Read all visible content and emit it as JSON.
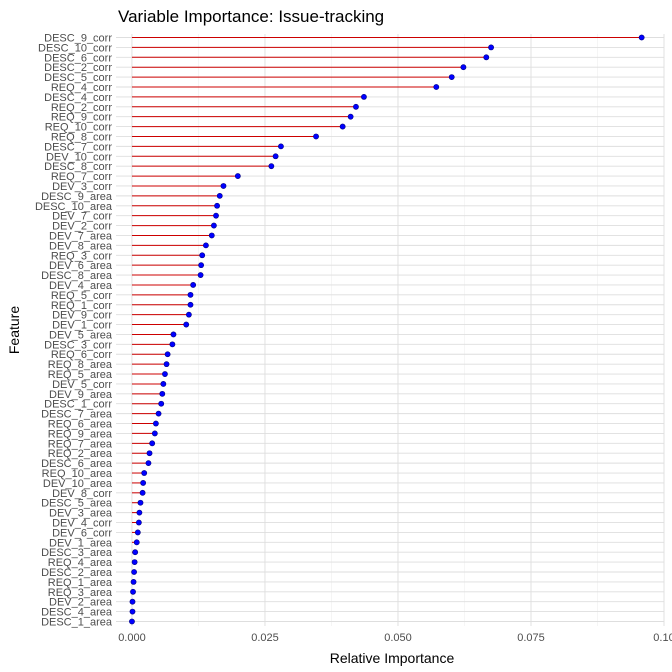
{
  "chart_data": {
    "type": "lollipop",
    "title": "Variable Importance: Issue-tracking",
    "xlabel": "Relative Importance",
    "ylabel": "Feature",
    "xlim": [
      -0.003,
      0.1
    ],
    "x_ticks": [
      0.0,
      0.025,
      0.05,
      0.075,
      0.1
    ],
    "x_tick_labels": [
      "0.000",
      "0.025",
      "0.050",
      "0.075",
      "0.10"
    ],
    "grid": true,
    "colors": {
      "segment": "#cc0000",
      "point": "#0000ff",
      "point_outline": "#000080"
    },
    "features": [
      "DESC_9_corr",
      "DESC_10_corr",
      "DESC_6_corr",
      "DESC_2_corr",
      "DESC_5_corr",
      "REQ_4_corr",
      "DESC_4_corr",
      "REQ_2_corr",
      "REQ_9_corr",
      "REQ_10_corr",
      "REQ_8_corr",
      "DESC_7_corr",
      "DEV_10_corr",
      "DESC_8_corr",
      "REQ_7_corr",
      "DEV_3_corr",
      "DESC_9_area",
      "DESC_10_area",
      "DEV_7_corr",
      "DEV_2_corr",
      "DEV_7_area",
      "DEV_8_area",
      "REQ_3_corr",
      "DEV_6_area",
      "DESC_8_area",
      "DEV_4_area",
      "REQ_5_corr",
      "REQ_1_corr",
      "DEV_9_corr",
      "DEV_1_corr",
      "DEV_5_area",
      "DESC_3_corr",
      "REQ_6_corr",
      "REQ_8_area",
      "REQ_5_area",
      "DEV_5_corr",
      "DEV_9_area",
      "DESC_1_corr",
      "DESC_7_area",
      "REQ_6_area",
      "REQ_9_area",
      "REQ_7_area",
      "REQ_2_area",
      "DESC_6_area",
      "REQ_10_area",
      "DEV_10_area",
      "DEV_8_corr",
      "DESC_5_area",
      "DEV_3_area",
      "DEV_4_corr",
      "DEV_6_corr",
      "DEV_1_area",
      "DESC_3_area",
      "REQ_4_area",
      "DESC_2_area",
      "REQ_1_area",
      "REQ_3_area",
      "DEV_2_area",
      "DESC_4_area",
      "DESC_1_area"
    ],
    "values": [
      0.0958,
      0.0675,
      0.0666,
      0.0623,
      0.0601,
      0.0572,
      0.0436,
      0.0421,
      0.0411,
      0.0396,
      0.0346,
      0.028,
      0.027,
      0.0262,
      0.0199,
      0.0172,
      0.0165,
      0.016,
      0.0158,
      0.0154,
      0.015,
      0.0139,
      0.0132,
      0.013,
      0.0129,
      0.0115,
      0.011,
      0.011,
      0.0107,
      0.0102,
      0.0078,
      0.0076,
      0.0067,
      0.0065,
      0.0062,
      0.0059,
      0.0057,
      0.0055,
      0.005,
      0.0045,
      0.0043,
      0.0038,
      0.0033,
      0.0031,
      0.0023,
      0.0021,
      0.002,
      0.0016,
      0.0014,
      0.0013,
      0.0011,
      0.0009,
      0.0006,
      0.0005,
      0.0004,
      0.0003,
      0.0002,
      0.0001,
      0.0001,
      0.0
    ]
  }
}
